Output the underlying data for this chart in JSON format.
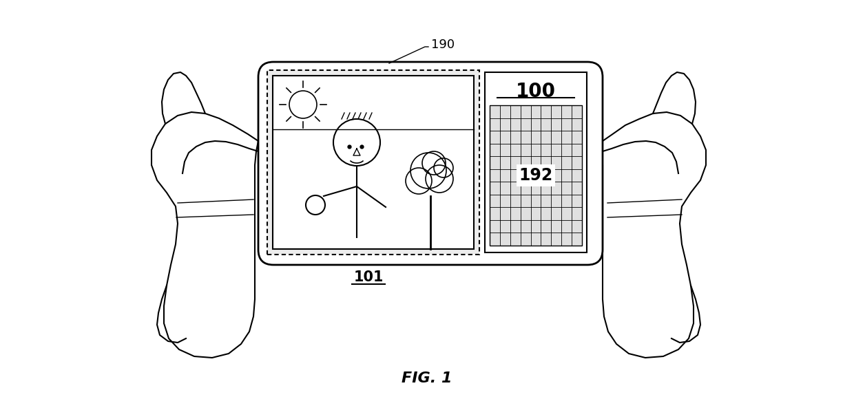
{
  "fig_label": "FIG. 1",
  "label_190": "190",
  "label_101": "101",
  "label_100": "100",
  "label_192": "192",
  "bg_color": "#ffffff",
  "line_color": "#000000",
  "fig_width": 12.4,
  "fig_height": 5.96,
  "dpi": 100
}
